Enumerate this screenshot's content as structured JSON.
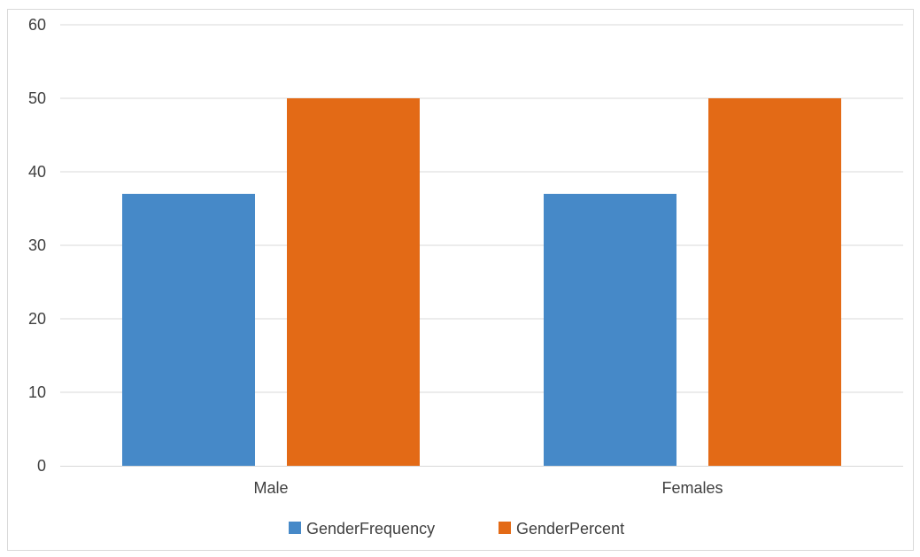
{
  "chart_data": {
    "type": "bar",
    "categories": [
      "Male",
      "Females"
    ],
    "series": [
      {
        "name": "GenderFrequency",
        "values": [
          37,
          37
        ],
        "color": "#4689c8"
      },
      {
        "name": "GenderPercent",
        "values": [
          50,
          50
        ],
        "color": "#e36a16"
      }
    ],
    "title": "",
    "xlabel": "",
    "ylabel": "",
    "ylim": [
      0,
      60
    ],
    "yticks": [
      "0",
      "10",
      "20",
      "30",
      "40",
      "50",
      "60"
    ],
    "grid": true,
    "legend": "bottom-center"
  }
}
